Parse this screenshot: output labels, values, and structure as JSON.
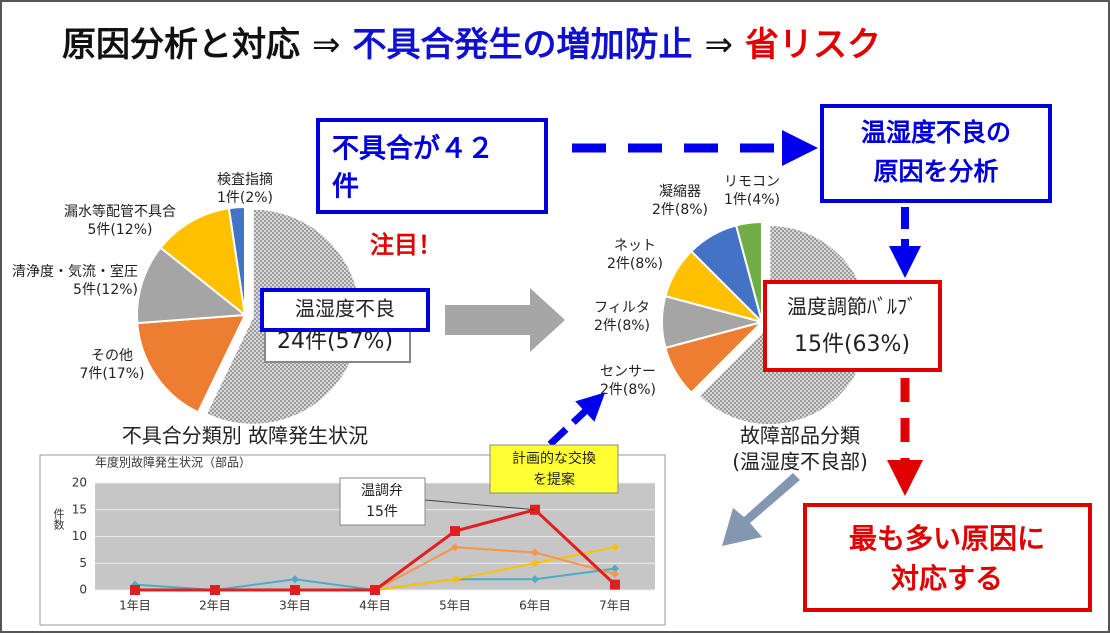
{
  "slide": {
    "title": [
      "原因分析と対応",
      "⇒",
      "不具合発生の増加防止",
      "⇒",
      "省リスク"
    ],
    "count_box": [
      "不具合が４２",
      "件"
    ],
    "analysis_box": [
      "温湿度不良の",
      "原因を分析"
    ],
    "attention": "注目！",
    "action_box": [
      "最も多い原因に",
      "対応する"
    ],
    "proposal_box": [
      "計画的な交換",
      "を提案"
    ]
  },
  "chart_data": [
    {
      "type": "pie",
      "caption": "不具合分類別 故障発生状況",
      "categories": [
        "温湿度不良",
        "その他",
        "清浄度・気流・室圧",
        "漏水等配管不具合",
        "検査指摘"
      ],
      "values": [
        24,
        7,
        5,
        5,
        1
      ],
      "value_labels": [
        "24件(57%)",
        "7件(17%)",
        "5件(12%)",
        "5件(12%)",
        "1件(2%)"
      ],
      "colors": [
        "pattern",
        "#ed7d31",
        "#a5a5a5",
        "#ffc000",
        "#4472c4"
      ]
    },
    {
      "type": "pie",
      "caption": [
        "故障部品分類",
        "(温湿度不良部)"
      ],
      "categories": [
        "温度調節ﾊﾞﾙﾌﾞ",
        "センサー",
        "フィルタ",
        "ネット",
        "凝縮器",
        "リモコン"
      ],
      "values": [
        15,
        2,
        2,
        2,
        2,
        1
      ],
      "value_labels": [
        "15件(63%)",
        "2件(8%)",
        "2件(8%)",
        "2件(8%)",
        "2件(8%)",
        "1件(4%)"
      ],
      "colors": [
        "pattern",
        "#ed7d31",
        "#a5a5a5",
        "#ffc000",
        "#4472c4",
        "#70ad47"
      ]
    },
    {
      "type": "line",
      "title": "年度別故障発生状況（部品）",
      "y_label": "件数",
      "categories": [
        "1年目",
        "2年目",
        "3年目",
        "4年目",
        "5年目",
        "6年目",
        "7年目"
      ],
      "series": [
        {
          "color": "#4bacc6",
          "values": [
            1,
            0,
            2,
            0,
            2,
            2,
            4
          ]
        },
        {
          "color": "#ffc000",
          "values": [
            null,
            null,
            null,
            0,
            2,
            5,
            8
          ]
        },
        {
          "color": "#f79646",
          "values": [
            null,
            null,
            null,
            0,
            8,
            7,
            3
          ]
        },
        {
          "color": "#e02020",
          "values": [
            0,
            0,
            0,
            0,
            11,
            15,
            1
          ]
        }
      ],
      "annotation": [
        "温調弁",
        "15件"
      ],
      "ylim": [
        0,
        20
      ],
      "yticks": [
        0,
        5,
        10,
        15,
        20
      ]
    }
  ]
}
